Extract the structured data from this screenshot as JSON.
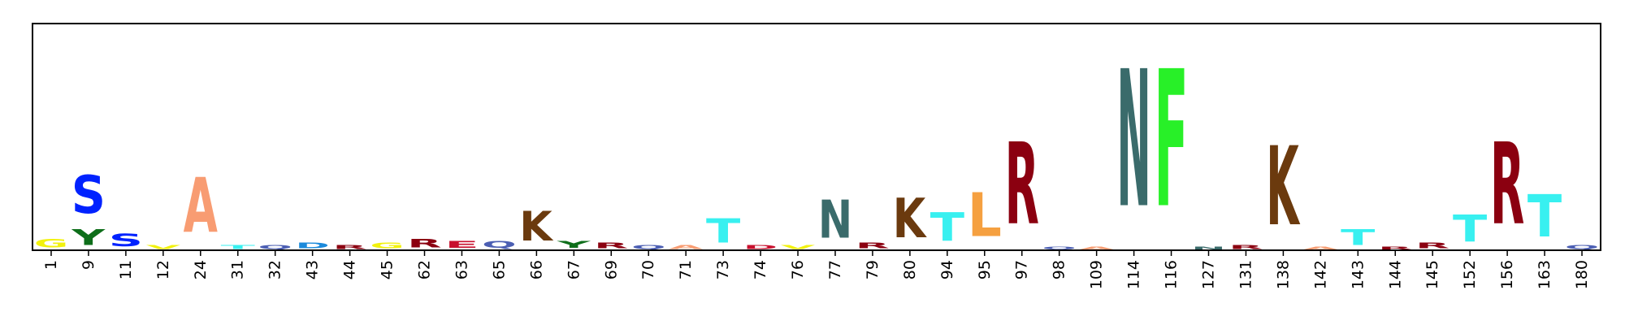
{
  "chart_data": {
    "type": "sequence-logo",
    "title": "",
    "xlabel": "",
    "ylabel": "",
    "y_ticks_shown": false,
    "ylim": [
      0,
      1
    ],
    "grid": false,
    "positions": [
      {
        "label": "1",
        "stack": [
          {
            "letter": "G",
            "height": 0.06,
            "color": "#f2f20d"
          }
        ]
      },
      {
        "label": "9",
        "stack": [
          {
            "letter": "Y",
            "height": 0.11,
            "color": "#0e6e1a"
          },
          {
            "letter": "S",
            "height": 0.27,
            "color": "#0022ff"
          }
        ]
      },
      {
        "label": "11",
        "stack": [
          {
            "letter": "S",
            "height": 0.09,
            "color": "#0022ff"
          }
        ]
      },
      {
        "label": "12",
        "stack": [
          {
            "letter": "V",
            "height": 0.03,
            "color": "#f2f20d"
          }
        ]
      },
      {
        "label": "24",
        "stack": [
          {
            "letter": "A",
            "height": 0.39,
            "color": "#f89c72"
          }
        ]
      },
      {
        "label": "31",
        "stack": [
          {
            "letter": "T",
            "height": 0.03,
            "color": "#38f0f0"
          }
        ]
      },
      {
        "label": "32",
        "stack": [
          {
            "letter": "Q",
            "height": 0.03,
            "color": "#4c5fb3"
          }
        ]
      },
      {
        "label": "43",
        "stack": [
          {
            "letter": "D",
            "height": 0.04,
            "color": "#1c8adb"
          }
        ]
      },
      {
        "label": "44",
        "stack": [
          {
            "letter": "R",
            "height": 0.03,
            "color": "#8b0010"
          }
        ]
      },
      {
        "label": "45",
        "stack": [
          {
            "letter": "G",
            "height": 0.04,
            "color": "#f2f20d"
          }
        ]
      },
      {
        "label": "62",
        "stack": [
          {
            "letter": "R",
            "height": 0.06,
            "color": "#8b0010"
          }
        ]
      },
      {
        "label": "63",
        "stack": [
          {
            "letter": "E",
            "height": 0.05,
            "color": "#c8102e"
          }
        ]
      },
      {
        "label": "65",
        "stack": [
          {
            "letter": "Q",
            "height": 0.05,
            "color": "#4c5fb3"
          }
        ]
      },
      {
        "label": "66",
        "stack": [
          {
            "letter": "K",
            "height": 0.21,
            "color": "#6b3a0e"
          }
        ]
      },
      {
        "label": "67",
        "stack": [
          {
            "letter": "Y",
            "height": 0.05,
            "color": "#0e6e1a"
          }
        ]
      },
      {
        "label": "69",
        "stack": [
          {
            "letter": "R",
            "height": 0.04,
            "color": "#8b0010"
          }
        ]
      },
      {
        "label": "70",
        "stack": [
          {
            "letter": "Q",
            "height": 0.03,
            "color": "#4c5fb3"
          }
        ]
      },
      {
        "label": "71",
        "stack": [
          {
            "letter": "A",
            "height": 0.03,
            "color": "#f89c72"
          }
        ]
      },
      {
        "label": "73",
        "stack": [
          {
            "letter": "T",
            "height": 0.17,
            "color": "#38f0f0"
          }
        ]
      },
      {
        "label": "74",
        "stack": [
          {
            "letter": "D",
            "height": 0.03,
            "color": "#c8102e"
          }
        ]
      },
      {
        "label": "76",
        "stack": [
          {
            "letter": "V",
            "height": 0.03,
            "color": "#f2f20d"
          }
        ]
      },
      {
        "label": "77",
        "stack": [
          {
            "letter": "N",
            "height": 0.27,
            "color": "#3a6b6b"
          }
        ]
      },
      {
        "label": "79",
        "stack": [
          {
            "letter": "R",
            "height": 0.04,
            "color": "#8b0010"
          }
        ]
      },
      {
        "label": "80",
        "stack": [
          {
            "letter": "K",
            "height": 0.28,
            "color": "#6b3a0e"
          }
        ]
      },
      {
        "label": "94",
        "stack": [
          {
            "letter": "T",
            "height": 0.2,
            "color": "#38f0f0"
          }
        ]
      },
      {
        "label": "95",
        "stack": [
          {
            "letter": "L",
            "height": 0.31,
            "color": "#f5a040"
          }
        ]
      },
      {
        "label": "97",
        "stack": [
          {
            "letter": "R",
            "height": 0.58,
            "color": "#8b0010"
          }
        ]
      },
      {
        "label": "98",
        "stack": [
          {
            "letter": "Q",
            "height": 0.02,
            "color": "#4c5fb3"
          }
        ]
      },
      {
        "label": "109",
        "stack": [
          {
            "letter": "A",
            "height": 0.02,
            "color": "#f89c72"
          }
        ]
      },
      {
        "label": "114",
        "stack": [
          {
            "letter": "N",
            "height": 0.97,
            "color": "#3a6b6b"
          }
        ]
      },
      {
        "label": "116",
        "stack": [
          {
            "letter": "F",
            "height": 0.97,
            "color": "#28f028"
          }
        ]
      },
      {
        "label": "127",
        "stack": [
          {
            "letter": "N",
            "height": 0.02,
            "color": "#3a6b6b"
          }
        ]
      },
      {
        "label": "131",
        "stack": [
          {
            "letter": "R",
            "height": 0.03,
            "color": "#8b0010"
          }
        ]
      },
      {
        "label": "138",
        "stack": [
          {
            "letter": "K",
            "height": 0.56,
            "color": "#6b3a0e"
          }
        ]
      },
      {
        "label": "142",
        "stack": [
          {
            "letter": "A",
            "height": 0.02,
            "color": "#f89c72"
          }
        ]
      },
      {
        "label": "143",
        "stack": [
          {
            "letter": "T",
            "height": 0.11,
            "color": "#38f0f0"
          }
        ]
      },
      {
        "label": "144",
        "stack": [
          {
            "letter": "R",
            "height": 0.02,
            "color": "#8b0010"
          }
        ]
      },
      {
        "label": "145",
        "stack": [
          {
            "letter": "R",
            "height": 0.04,
            "color": "#8b0010"
          }
        ]
      },
      {
        "label": "152",
        "stack": [
          {
            "letter": "T",
            "height": 0.19,
            "color": "#38f0f0"
          }
        ]
      },
      {
        "label": "156",
        "stack": [
          {
            "letter": "R",
            "height": 0.58,
            "color": "#8b0010"
          }
        ]
      },
      {
        "label": "163",
        "stack": [
          {
            "letter": "T",
            "height": 0.3,
            "color": "#38f0f0"
          }
        ]
      },
      {
        "label": "180",
        "stack": [
          {
            "letter": "Q",
            "height": 0.03,
            "color": "#4c5fb3"
          }
        ]
      }
    ]
  }
}
